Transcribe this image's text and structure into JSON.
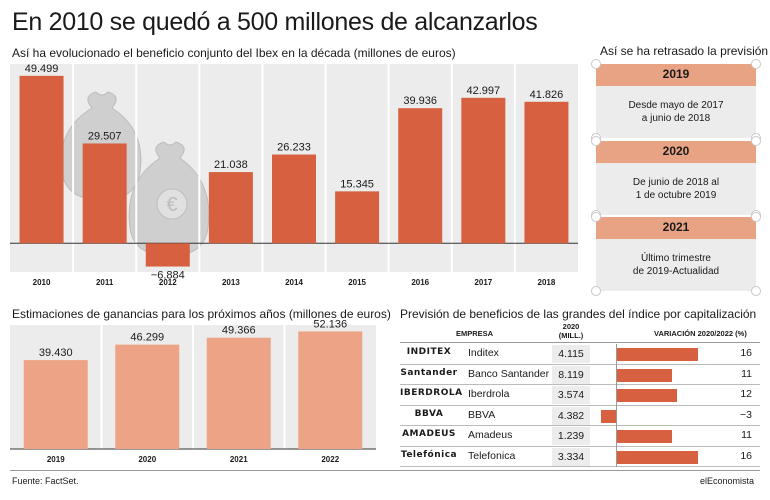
{
  "title": "En 2010 se quedó a 500 millones de alcanzarlos",
  "footer": {
    "source": "Fuente: FactSet.",
    "brand": "elEconomista"
  },
  "colors": {
    "bar_dark": "#d6603f",
    "bar_light": "#eda486",
    "ticket_header": "#e8a384",
    "panel": "#ececec"
  },
  "chart_data": [
    {
      "type": "bar",
      "title": "Así ha evolucionado el beneficio conjunto del Ibex en la década (millones de euros)",
      "categories": [
        "2010",
        "2011",
        "2012",
        "2013",
        "2014",
        "2015",
        "2016",
        "2017",
        "2018"
      ],
      "values": [
        49499,
        29507,
        -6884,
        21038,
        26233,
        15345,
        39936,
        42997,
        41826
      ],
      "value_labels": [
        "49.499",
        "29.507",
        "−6.884",
        "21.038",
        "26.233",
        "15.345",
        "39.936",
        "42.997",
        "41.826"
      ],
      "ylim": [
        -8500,
        53000
      ],
      "grid": true
    },
    {
      "type": "bar",
      "title": "Estimaciones de ganancias para los próximos años (millones de euros)",
      "categories": [
        "2019",
        "2020",
        "2021",
        "2022"
      ],
      "values": [
        39430,
        46299,
        49366,
        52136
      ],
      "value_labels": [
        "39.430",
        "46.299",
        "49.366",
        "52.136"
      ],
      "ylim": [
        0,
        55000
      ],
      "grid": false
    },
    {
      "type": "table",
      "title": "Previsión de beneficios de las grandes del índice por capitalización",
      "columns": [
        "EMPRESA",
        "2020 (MILL.)",
        "VARIACIÓN 2020/2022 (%)"
      ],
      "col_2020": "2020",
      "col_mill": "(MILL.)",
      "rows": [
        {
          "logo": "INDITEX",
          "name": "Inditex",
          "value_2020": "4.115",
          "variation_label": "16",
          "variation": 16
        },
        {
          "logo": "Santander",
          "name": "Banco Santander",
          "value_2020": "8.119",
          "variation_label": "11",
          "variation": 11
        },
        {
          "logo": "IBERDROLA",
          "name": "Iberdrola",
          "value_2020": "3.574",
          "variation_label": "12",
          "variation": 12
        },
        {
          "logo": "BBVA",
          "name": "BBVA",
          "value_2020": "4.382",
          "variation_label": "−3",
          "variation": -3
        },
        {
          "logo": "AMADEUS",
          "name": "Amadeus",
          "value_2020": "1.239",
          "variation_label": "11",
          "variation": 11
        },
        {
          "logo": "Telefónica",
          "name": "Telefonica",
          "value_2020": "3.334",
          "variation_label": "16",
          "variation": 16
        }
      ]
    }
  ],
  "delay": {
    "title": "Así se ha retrasado la previsión",
    "tickets": [
      {
        "year": "2019",
        "line1": "Desde mayo de 2017",
        "line2": "a junio de 2018"
      },
      {
        "year": "2020",
        "line1": "De junio de 2018 al",
        "line2": "1 de octubre 2019"
      },
      {
        "year": "2021",
        "line1": "Último trimestre",
        "line2": "de 2019-Actualidad"
      }
    ]
  }
}
